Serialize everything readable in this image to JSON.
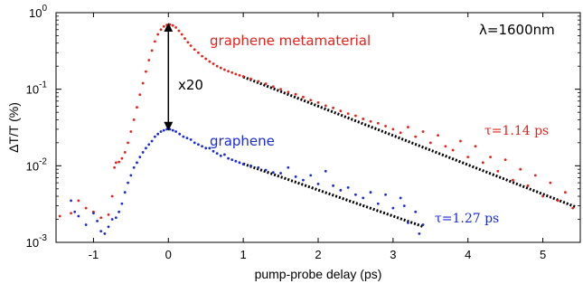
{
  "chart_data": {
    "type": "scatter",
    "xlabel": "pump-probe delay (ps)",
    "ylabel": "ΔT/T (%)",
    "xlim": [
      -1.5,
      5.5
    ],
    "ylim": [
      0.001,
      1
    ],
    "yscale": "log",
    "x_ticks": [
      "-1",
      "0",
      "1",
      "2",
      "3",
      "4",
      "5"
    ],
    "x_tick_values": [
      -1,
      0,
      1,
      2,
      3,
      4,
      5
    ],
    "y_tick_values": [
      0.001,
      0.01,
      0.1,
      1
    ],
    "y_tick_bases": [
      "10",
      "10",
      "10",
      "10"
    ],
    "y_tick_exps": [
      "-3",
      "-2",
      "-1",
      "0"
    ],
    "colors": {
      "metamaterial": "#e8201a",
      "graphene": "#1a2ad8",
      "fit": "#000000"
    },
    "series": [
      {
        "name": "graphene metamaterial",
        "color": "#e8201a",
        "points": [
          [
            -1.45,
            0.0022
          ],
          [
            -1.3,
            0.0024
          ],
          [
            -1.2,
            0.0035
          ],
          [
            -1.1,
            0.0028
          ],
          [
            -1.0,
            0.0025
          ],
          [
            -0.9,
            0.0021
          ],
          [
            -0.8,
            0.0023
          ],
          [
            -0.75,
            0.004
          ],
          [
            -0.72,
            0.0095
          ],
          [
            -0.7,
            0.011
          ],
          [
            -0.66,
            0.0112
          ],
          [
            -0.62,
            0.0125
          ],
          [
            -0.58,
            0.015
          ],
          [
            -0.54,
            0.02
          ],
          [
            -0.5,
            0.028
          ],
          [
            -0.46,
            0.04
          ],
          [
            -0.42,
            0.058
          ],
          [
            -0.38,
            0.085
          ],
          [
            -0.34,
            0.12
          ],
          [
            -0.3,
            0.17
          ],
          [
            -0.26,
            0.24
          ],
          [
            -0.22,
            0.32
          ],
          [
            -0.18,
            0.42
          ],
          [
            -0.14,
            0.52
          ],
          [
            -0.1,
            0.6
          ],
          [
            -0.06,
            0.66
          ],
          [
            -0.02,
            0.69
          ],
          [
            0.02,
            0.7
          ],
          [
            0.06,
            0.68
          ],
          [
            0.1,
            0.64
          ],
          [
            0.14,
            0.58
          ],
          [
            0.18,
            0.52
          ],
          [
            0.22,
            0.46
          ],
          [
            0.26,
            0.41
          ],
          [
            0.3,
            0.37
          ],
          [
            0.35,
            0.33
          ],
          [
            0.4,
            0.3
          ],
          [
            0.45,
            0.27
          ],
          [
            0.5,
            0.25
          ],
          [
            0.55,
            0.23
          ],
          [
            0.6,
            0.215
          ],
          [
            0.65,
            0.2
          ],
          [
            0.7,
            0.19
          ],
          [
            0.75,
            0.18
          ],
          [
            0.8,
            0.172
          ],
          [
            0.85,
            0.165
          ],
          [
            0.9,
            0.158
          ],
          [
            0.95,
            0.152
          ],
          [
            1.0,
            0.147
          ],
          [
            1.1,
            0.137
          ],
          [
            1.2,
            0.127
          ],
          [
            1.3,
            0.118
          ],
          [
            1.4,
            0.108
          ],
          [
            1.5,
            0.1
          ],
          [
            1.6,
            0.092
          ],
          [
            1.7,
            0.086
          ],
          [
            1.8,
            0.079
          ],
          [
            1.9,
            0.072
          ],
          [
            2.0,
            0.067
          ],
          [
            2.1,
            0.061
          ],
          [
            2.2,
            0.057
          ],
          [
            2.3,
            0.052
          ],
          [
            2.4,
            0.048
          ],
          [
            2.5,
            0.045
          ],
          [
            2.6,
            0.041
          ],
          [
            2.7,
            0.038
          ],
          [
            2.8,
            0.036
          ],
          [
            2.9,
            0.033
          ],
          [
            3.0,
            0.03
          ],
          [
            3.1,
            0.027
          ],
          [
            3.2,
            0.032
          ],
          [
            3.3,
            0.024
          ],
          [
            3.4,
            0.028
          ],
          [
            3.5,
            0.02
          ],
          [
            3.6,
            0.025
          ],
          [
            3.7,
            0.018
          ],
          [
            3.8,
            0.016
          ],
          [
            3.9,
            0.021
          ],
          [
            4.0,
            0.013
          ],
          [
            4.1,
            0.018
          ],
          [
            4.2,
            0.011
          ],
          [
            4.3,
            0.013
          ],
          [
            4.4,
            0.0085
          ],
          [
            4.5,
            0.012
          ],
          [
            4.6,
            0.0065
          ],
          [
            4.7,
            0.009
          ],
          [
            4.8,
            0.0055
          ],
          [
            4.9,
            0.0075
          ],
          [
            5.0,
            0.004
          ],
          [
            5.1,
            0.006
          ],
          [
            5.2,
            0.0035
          ],
          [
            5.3,
            0.0045
          ],
          [
            5.4,
            0.0028
          ]
        ]
      },
      {
        "name": "graphene",
        "color": "#1a2ad8",
        "points": [
          [
            -1.3,
            0.0035
          ],
          [
            -1.25,
            0.0025
          ],
          [
            -1.2,
            0.0022
          ],
          [
            -1.1,
            0.0017
          ],
          [
            -1.0,
            0.0024
          ],
          [
            -0.95,
            0.0019
          ],
          [
            -0.9,
            0.0014
          ],
          [
            -0.85,
            0.0013
          ],
          [
            -0.8,
            0.0016
          ],
          [
            -0.75,
            0.002
          ],
          [
            -0.7,
            0.0021
          ],
          [
            -0.66,
            0.0025
          ],
          [
            -0.62,
            0.0032
          ],
          [
            -0.58,
            0.0045
          ],
          [
            -0.54,
            0.006
          ],
          [
            -0.5,
            0.0075
          ],
          [
            -0.46,
            0.0095
          ],
          [
            -0.42,
            0.011
          ],
          [
            -0.38,
            0.013
          ],
          [
            -0.34,
            0.015
          ],
          [
            -0.3,
            0.017
          ],
          [
            -0.26,
            0.019
          ],
          [
            -0.22,
            0.021
          ],
          [
            -0.18,
            0.024
          ],
          [
            -0.14,
            0.026
          ],
          [
            -0.1,
            0.028
          ],
          [
            -0.06,
            0.029
          ],
          [
            -0.02,
            0.03
          ],
          [
            0.02,
            0.03
          ],
          [
            0.06,
            0.029
          ],
          [
            0.1,
            0.028
          ],
          [
            0.15,
            0.026
          ],
          [
            0.2,
            0.024
          ],
          [
            0.25,
            0.023
          ],
          [
            0.3,
            0.022
          ],
          [
            0.35,
            0.02
          ],
          [
            0.4,
            0.019
          ],
          [
            0.45,
            0.018
          ],
          [
            0.5,
            0.017
          ],
          [
            0.55,
            0.017
          ],
          [
            0.6,
            0.0155
          ],
          [
            0.65,
            0.0145
          ],
          [
            0.7,
            0.0135
          ],
          [
            0.75,
            0.014
          ],
          [
            0.8,
            0.0125
          ],
          [
            0.85,
            0.012
          ],
          [
            0.9,
            0.0115
          ],
          [
            0.95,
            0.011
          ],
          [
            1.0,
            0.0105
          ],
          [
            1.1,
            0.01
          ],
          [
            1.2,
            0.0095
          ],
          [
            1.3,
            0.0088
          ],
          [
            1.4,
            0.0082
          ],
          [
            1.5,
            0.008
          ],
          [
            1.6,
            0.0095
          ],
          [
            1.7,
            0.0072
          ],
          [
            1.8,
            0.0065
          ],
          [
            1.9,
            0.0075
          ],
          [
            2.0,
            0.0058
          ],
          [
            2.1,
            0.0085
          ],
          [
            2.2,
            0.0055
          ],
          [
            2.3,
            0.0048
          ],
          [
            2.4,
            0.0052
          ],
          [
            2.5,
            0.0042
          ],
          [
            2.6,
            0.0038
          ],
          [
            2.7,
            0.0045
          ],
          [
            2.8,
            0.0032
          ],
          [
            2.9,
            0.0042
          ],
          [
            3.0,
            0.0028
          ],
          [
            3.1,
            0.0038
          ],
          [
            3.15,
            0.003
          ],
          [
            3.2,
            0.0018
          ],
          [
            3.3,
            0.0025
          ],
          [
            3.35,
            0.0013
          ],
          [
            3.4,
            0.0017
          ]
        ]
      }
    ],
    "fit_lines": [
      {
        "name": "metamaterial fit",
        "x0": 1.0,
        "y0": 0.145,
        "x1": 5.45,
        "y1": 0.00287
      },
      {
        "name": "graphene fit",
        "x0": 1.0,
        "y0": 0.0106,
        "x1": 3.4,
        "y1": 0.00161
      }
    ],
    "annotations": {
      "metamaterial_label": "graphene metamaterial",
      "graphene_label": "graphene",
      "wavelength": "λ=1600nm",
      "ratio": "x20",
      "tau_meta": "τ=1.14 ps",
      "tau_graphene": "τ=1.27 ps"
    },
    "ratio_arrow": {
      "x": 0,
      "y_top": 0.68,
      "y_bottom": 0.031
    }
  }
}
